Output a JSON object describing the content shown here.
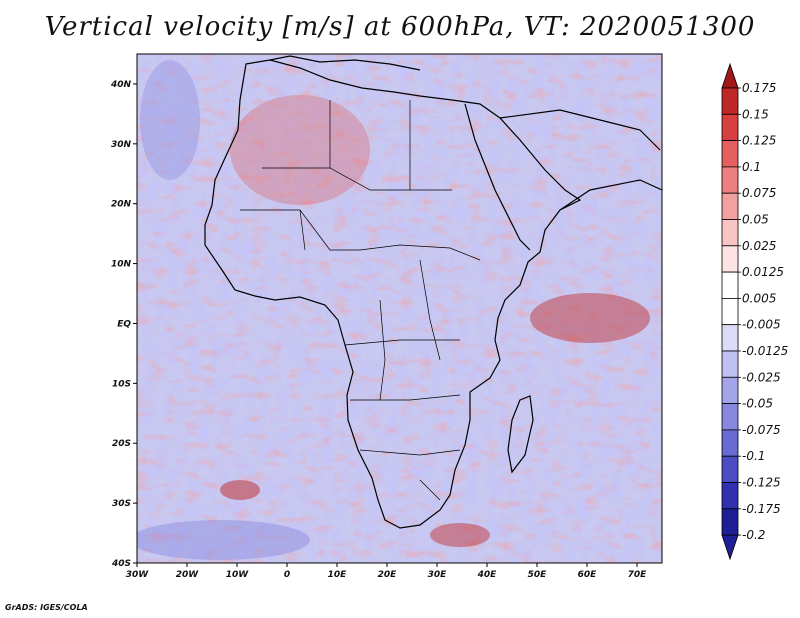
{
  "title": "Vertical velocity [m/s] at 600hPa, VT: 2020051300",
  "credit": "GrADS: IGES/COLA",
  "map": {
    "lon_range": [
      -30,
      75
    ],
    "lat_range": [
      -40,
      45
    ],
    "lon_ticks": [
      "30W",
      "20W",
      "10W",
      "0",
      "10E",
      "20E",
      "30E",
      "40E",
      "50E",
      "60E",
      "70E"
    ],
    "lat_ticks": [
      "40N",
      "30N",
      "20N",
      "10N",
      "EQ",
      "10S",
      "20S",
      "30S",
      "40S"
    ]
  },
  "colorbar": {
    "levels": [
      {
        "label": "0.175",
        "color": "#a01818"
      },
      {
        "label": "0.15",
        "color": "#c02828"
      },
      {
        "label": "0.125",
        "color": "#d84040"
      },
      {
        "label": "0.1",
        "color": "#e46060"
      },
      {
        "label": "0.075",
        "color": "#ec8080"
      },
      {
        "label": "0.05",
        "color": "#f2a0a0"
      },
      {
        "label": "0.025",
        "color": "#f8c4c4"
      },
      {
        "label": "0.0125",
        "color": "#fce2e2"
      },
      {
        "label": "0.005",
        "color": "#ffffff"
      },
      {
        "label": "-0.005",
        "color": "#ffffff"
      },
      {
        "label": "-0.0125",
        "color": "#dcdcf8"
      },
      {
        "label": "-0.025",
        "color": "#c0c0f2"
      },
      {
        "label": "-0.05",
        "color": "#a4a4ea"
      },
      {
        "label": "-0.075",
        "color": "#8888e0"
      },
      {
        "label": "-0.1",
        "color": "#6a6ad4"
      },
      {
        "label": "-0.125",
        "color": "#4c4cc4"
      },
      {
        "label": "-0.175",
        "color": "#3030b0"
      },
      {
        "label": "-0.2",
        "color": "#1e1e96"
      }
    ],
    "top_arrow_color": "#a01818",
    "bottom_arrow_color": "#1e1e96"
  }
}
